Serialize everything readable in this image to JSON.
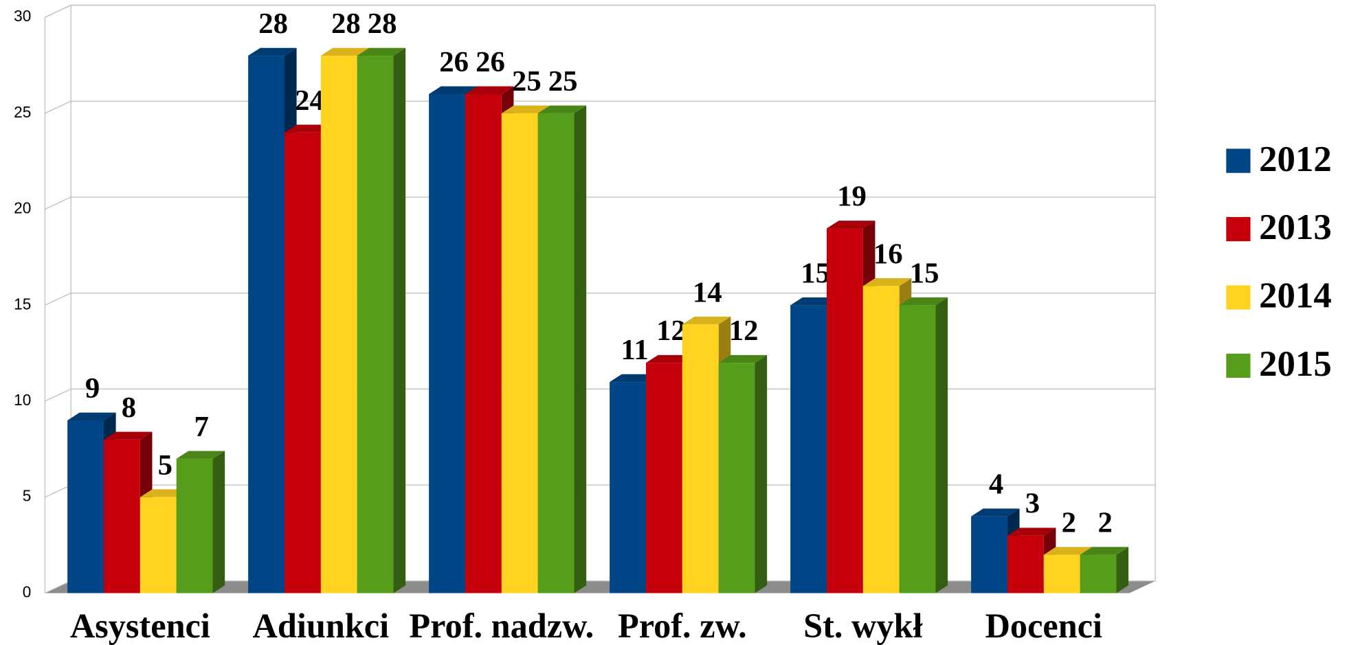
{
  "chart_data": {
    "type": "bar3d",
    "categories": [
      "Asystenci",
      "Adiunkci",
      "Prof. nadzw.",
      "Prof. zw.",
      "St. wykł",
      "Docenci"
    ],
    "series": [
      {
        "name": "2012",
        "color": "#004586",
        "values": [
          9,
          28,
          26,
          11,
          15,
          4
        ]
      },
      {
        "name": "2013",
        "color": "#c5000b",
        "values": [
          8,
          24,
          26,
          12,
          19,
          3
        ]
      },
      {
        "name": "2014",
        "color": "#ffd320",
        "values": [
          5,
          28,
          25,
          14,
          16,
          2
        ]
      },
      {
        "name": "2015",
        "color": "#579d1c",
        "values": [
          7,
          28,
          25,
          12,
          15,
          2
        ]
      }
    ],
    "ylim": [
      0,
      30
    ],
    "yticks": [
      0,
      5,
      10,
      15,
      20,
      25,
      30
    ],
    "grid": true,
    "legend": "right"
  }
}
